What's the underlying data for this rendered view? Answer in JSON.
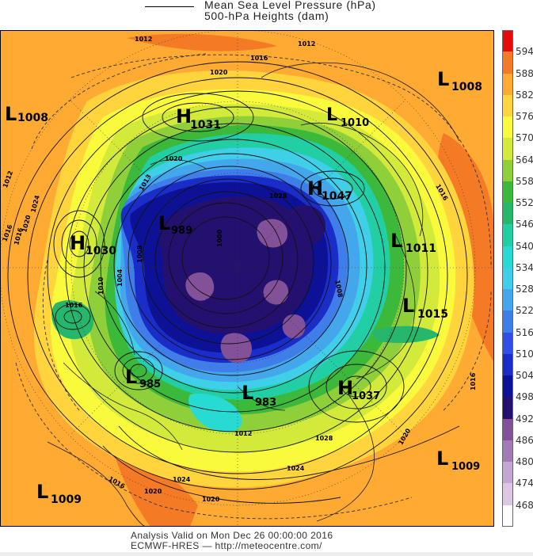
{
  "header": {
    "legend_line1": "Mean Sea Level Pressure (hPa)",
    "legend_line2": "500-hPa Heights (dam)"
  },
  "map": {
    "pressure_centers": [
      {
        "type": "H",
        "value": "1031"
      },
      {
        "type": "L",
        "value": "1008"
      },
      {
        "type": "L",
        "value": "1008"
      },
      {
        "type": "L",
        "value": "1010"
      },
      {
        "type": "H",
        "value": "1047"
      },
      {
        "type": "H",
        "value": "1030"
      },
      {
        "type": "L",
        "value": "989"
      },
      {
        "type": "L",
        "value": "1011"
      },
      {
        "type": "L",
        "value": "1015"
      },
      {
        "type": "L",
        "value": "985"
      },
      {
        "type": "L",
        "value": "983"
      },
      {
        "type": "H",
        "value": "1037"
      },
      {
        "type": "L",
        "value": "1009"
      },
      {
        "type": "L",
        "value": "1009"
      }
    ],
    "isobar_labels": [
      "1012",
      "1012",
      "1016",
      "1020",
      "1016",
      "1012",
      "1024",
      "1020",
      "1016",
      "1020",
      "1013",
      "1028",
      "1008",
      "1016",
      "1012",
      "1028",
      "1024",
      "1020",
      "1016",
      "1016",
      "1020",
      "1024",
      "1010",
      "1016",
      "1004",
      "1008",
      "1000",
      "1020"
    ],
    "colors": {
      "h468": "#fdfdfd",
      "h474": "#dcc6e4",
      "h480": "#c3a6d1",
      "h486": "#a27ab6",
      "h492": "#835198",
      "h498": "#24106e",
      "h504": "#0c1196",
      "h510": "#1a2dc9",
      "h516": "#2f4fe6",
      "h522": "#3f7de9",
      "h528": "#44a7ec",
      "h534": "#3fcfe8",
      "h540": "#27dbd3",
      "h546": "#22cfa4",
      "h552": "#26b66c",
      "h558": "#3cb83b",
      "h564": "#8fd03a",
      "h570": "#d3ea3a",
      "h576": "#fafa3c",
      "h582": "#ffd43c",
      "h588": "#ffaa33",
      "h594": "#f47a25",
      "h600": "#e60a0a"
    }
  },
  "colorbar": {
    "ticks": [
      "594",
      "588",
      "582",
      "576",
      "570",
      "564",
      "558",
      "552",
      "546",
      "540",
      "534",
      "528",
      "522",
      "516",
      "510",
      "504",
      "498",
      "492",
      "486",
      "480",
      "474",
      "468"
    ],
    "colors": [
      "#e60a0a",
      "#f47a25",
      "#ffaa33",
      "#ffd43c",
      "#fafa3c",
      "#d3ea3a",
      "#8fd03a",
      "#3cb83b",
      "#26b66c",
      "#22cfa4",
      "#27dbd3",
      "#3fcfe8",
      "#44a7ec",
      "#3f7de9",
      "#2f4fe6",
      "#1a2dc9",
      "#0c1196",
      "#24106e",
      "#835198",
      "#a27ab6",
      "#c3a6d1",
      "#dcc6e4",
      "#fdfdfd"
    ]
  },
  "footer": {
    "line1": "Analysis Valid on Mon Dec 26 00:00:00 2016",
    "line2": "ECMWF-HRES  — http://meteocentre.com/"
  }
}
